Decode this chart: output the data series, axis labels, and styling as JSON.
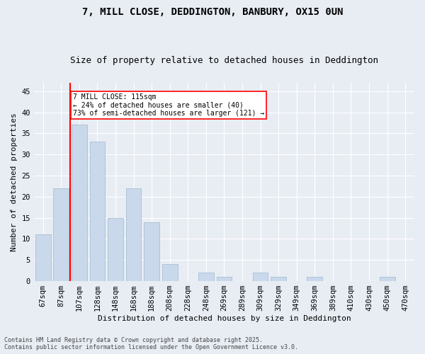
{
  "title1": "7, MILL CLOSE, DEDDINGTON, BANBURY, OX15 0UN",
  "title2": "Size of property relative to detached houses in Deddington",
  "xlabel": "Distribution of detached houses by size in Deddington",
  "ylabel": "Number of detached properties",
  "categories": [
    "67sqm",
    "87sqm",
    "107sqm",
    "128sqm",
    "148sqm",
    "168sqm",
    "188sqm",
    "208sqm",
    "228sqm",
    "248sqm",
    "269sqm",
    "289sqm",
    "309sqm",
    "329sqm",
    "349sqm",
    "369sqm",
    "389sqm",
    "410sqm",
    "430sqm",
    "450sqm",
    "470sqm"
  ],
  "values": [
    11,
    22,
    37,
    33,
    15,
    22,
    14,
    4,
    0,
    2,
    1,
    0,
    2,
    1,
    0,
    1,
    0,
    0,
    0,
    1,
    0
  ],
  "bar_color": "#c9d9eb",
  "bar_edge_color": "#a8bfd4",
  "background_color": "#e8edf4",
  "grid_color": "#ffffff",
  "redline_index": 2,
  "annotation_title": "7 MILL CLOSE: 115sqm",
  "annotation_line1": "← 24% of detached houses are smaller (40)",
  "annotation_line2": "73% of semi-detached houses are larger (121) →",
  "footnote1": "Contains HM Land Registry data © Crown copyright and database right 2025.",
  "footnote2": "Contains public sector information licensed under the Open Government Licence v3.0.",
  "ylim": [
    0,
    47
  ],
  "yticks": [
    0,
    5,
    10,
    15,
    20,
    25,
    30,
    35,
    40,
    45
  ],
  "title1_fontsize": 10,
  "title2_fontsize": 9,
  "tick_fontsize": 7.5,
  "ylabel_fontsize": 8,
  "xlabel_fontsize": 8,
  "footnote_fontsize": 6
}
